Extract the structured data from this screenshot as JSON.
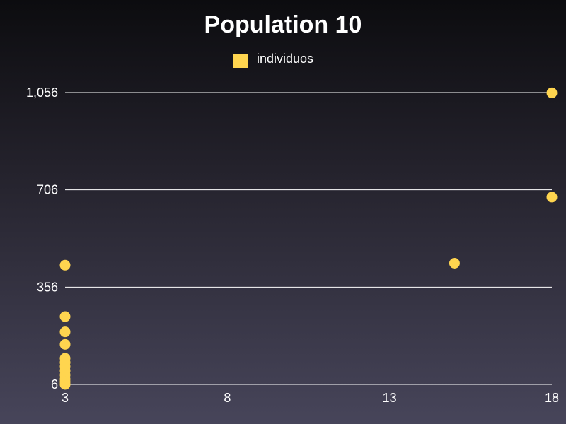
{
  "chart_data": {
    "type": "scatter",
    "title": "Population 10",
    "legend": {
      "position": "top-center"
    },
    "series": [
      {
        "name": "individuos",
        "color": "#ffd54f",
        "points": [
          {
            "x": 3,
            "y": 6
          },
          {
            "x": 3,
            "y": 15
          },
          {
            "x": 3,
            "y": 25
          },
          {
            "x": 3,
            "y": 40
          },
          {
            "x": 3,
            "y": 55
          },
          {
            "x": 3,
            "y": 70
          },
          {
            "x": 3,
            "y": 85
          },
          {
            "x": 3,
            "y": 100
          },
          {
            "x": 3,
            "y": 150
          },
          {
            "x": 3,
            "y": 195
          },
          {
            "x": 3,
            "y": 250
          },
          {
            "x": 3,
            "y": 435
          },
          {
            "x": 15,
            "y": 442
          },
          {
            "x": 18,
            "y": 680
          },
          {
            "x": 18,
            "y": 1055
          }
        ]
      }
    ],
    "x_axis": {
      "ticks": [
        3,
        8,
        13,
        18
      ],
      "tick_labels": [
        "3",
        "8",
        "13",
        "18"
      ],
      "range": [
        3,
        18
      ]
    },
    "y_axis": {
      "ticks": [
        6,
        356,
        706,
        1056
      ],
      "tick_labels": [
        "6",
        "356",
        "706",
        "1,056"
      ],
      "range": [
        6,
        1056
      ]
    },
    "grid": {
      "horizontal": true,
      "vertical": false
    }
  }
}
